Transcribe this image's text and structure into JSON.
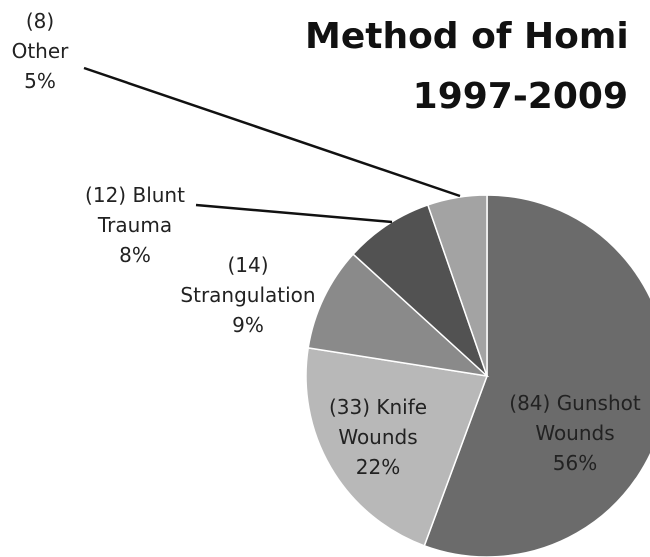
{
  "chart_data": {
    "type": "pie",
    "title": "Method of Homi",
    "subtitle": "1997-2009",
    "categories": [
      "Gunshot Wounds",
      "Knife Wounds",
      "Strangulation",
      "Blunt Trauma",
      "Other"
    ],
    "values": [
      84,
      33,
      14,
      12,
      8
    ],
    "value_labels": [
      "(84)",
      "(33)",
      "(14)",
      "(12)",
      "(8)"
    ],
    "percent_labels": [
      "56%",
      "22%",
      "9%",
      "8%",
      "5%"
    ],
    "colors": [
      "#6b6b6b",
      "#b8b8b8",
      "#8a8a8a",
      "#525252",
      "#a3a3a3"
    ]
  }
}
